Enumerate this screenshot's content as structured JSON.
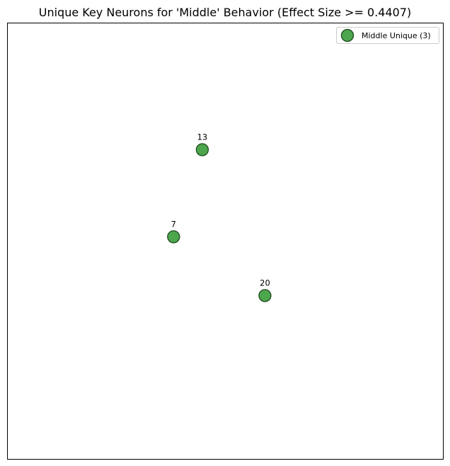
{
  "chart_data": {
    "type": "scatter",
    "title": "Unique Key Neurons for 'Middle' Behavior (Effect Size >= 0.4407)",
    "xlabel": "",
    "ylabel": "",
    "axes_visible": false,
    "grid": false,
    "legend_position": "top-right",
    "xlim": [
      0,
      1
    ],
    "ylim": [
      0,
      1
    ],
    "series": [
      {
        "name": "Middle Unique (3)",
        "color": "#4ca64c",
        "edge_color": "#1f4a1f",
        "points": [
          {
            "label": "13",
            "x": 0.447,
            "y": 0.71
          },
          {
            "label": "7",
            "x": 0.381,
            "y": 0.51
          },
          {
            "label": "20",
            "x": 0.591,
            "y": 0.375
          }
        ]
      }
    ]
  }
}
